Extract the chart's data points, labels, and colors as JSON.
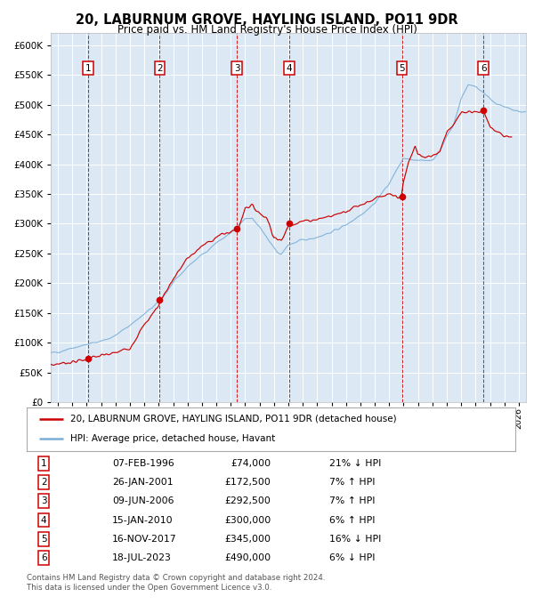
{
  "title": "20, LABURNUM GROVE, HAYLING ISLAND, PO11 9DR",
  "subtitle": "Price paid vs. HM Land Registry's House Price Index (HPI)",
  "ylim": [
    0,
    620000
  ],
  "yticks": [
    0,
    50000,
    100000,
    150000,
    200000,
    250000,
    300000,
    350000,
    400000,
    450000,
    500000,
    550000,
    600000
  ],
  "xlim_start": 1993.5,
  "xlim_end": 2026.5,
  "bg_color": "#dce9f5",
  "grid_color": "#ffffff",
  "hpi_color": "#7aaed6",
  "price_color": "#cc0000",
  "sales": [
    {
      "num": 1,
      "year": 1996.1,
      "price": 74000
    },
    {
      "num": 2,
      "year": 2001.07,
      "price": 172500
    },
    {
      "num": 3,
      "year": 2006.44,
      "price": 292500
    },
    {
      "num": 4,
      "year": 2010.04,
      "price": 300000
    },
    {
      "num": 5,
      "year": 2017.88,
      "price": 345000
    },
    {
      "num": 6,
      "year": 2023.54,
      "price": 490000
    }
  ],
  "footer1": "Contains HM Land Registry data © Crown copyright and database right 2024.",
  "footer2": "This data is licensed under the Open Government Licence v3.0.",
  "legend_line1": "20, LABURNUM GROVE, HAYLING ISLAND, PO11 9DR (detached house)",
  "legend_line2": "HPI: Average price, detached house, Havant",
  "table": [
    {
      "num": "1",
      "date": "07-FEB-1996",
      "price": "£74,000",
      "hpi": "21% ↓ HPI"
    },
    {
      "num": "2",
      "date": "26-JAN-2001",
      "price": "£172,500",
      "hpi": "7% ↑ HPI"
    },
    {
      "num": "3",
      "date": "09-JUN-2006",
      "price": "£292,500",
      "hpi": "7% ↑ HPI"
    },
    {
      "num": "4",
      "date": "15-JAN-2010",
      "price": "£300,000",
      "hpi": "6% ↑ HPI"
    },
    {
      "num": "5",
      "date": "16-NOV-2017",
      "price": "£345,000",
      "hpi": "16% ↓ HPI"
    },
    {
      "num": "6",
      "date": "18-JUL-2023",
      "price": "£490,000",
      "hpi": "6% ↓ HPI"
    }
  ],
  "hpi_ctrl_x": [
    1993.5,
    1994,
    1995,
    1996,
    1997,
    1998,
    1999,
    2000,
    2001,
    2002,
    2003,
    2004,
    2005,
    2006,
    2007,
    2007.5,
    2008,
    2009,
    2009.5,
    2010,
    2011,
    2012,
    2013,
    2014,
    2015,
    2016,
    2017,
    2018,
    2019,
    2020,
    2020.5,
    2021,
    2021.5,
    2022,
    2022.5,
    2023,
    2023.5,
    2024,
    2024.5,
    2025,
    2025.5,
    2026,
    2026.5
  ],
  "hpi_ctrl_y": [
    82000,
    85000,
    92000,
    97000,
    103000,
    112000,
    130000,
    148000,
    168000,
    200000,
    228000,
    248000,
    268000,
    284000,
    308000,
    310000,
    295000,
    258000,
    248000,
    265000,
    272000,
    278000,
    286000,
    298000,
    315000,
    335000,
    368000,
    410000,
    405000,
    408000,
    420000,
    448000,
    468000,
    510000,
    535000,
    530000,
    522000,
    510000,
    502000,
    495000,
    492000,
    488000,
    488000
  ],
  "price_ctrl_x": [
    1993.5,
    1994,
    1995,
    1996.05,
    1996.15,
    1997,
    1998,
    1999,
    2000,
    2001.0,
    2001.15,
    2002,
    2003,
    2004,
    2005,
    2006,
    2006.3,
    2006.55,
    2007,
    2007.5,
    2008,
    2008.5,
    2009,
    2009.5,
    2010.0,
    2010.15,
    2011,
    2012,
    2013,
    2014,
    2015,
    2016,
    2017,
    2017.85,
    2018.0,
    2018.3,
    2018.8,
    2019,
    2019.5,
    2020,
    2020.5,
    2021,
    2021.5,
    2022,
    2022.5,
    2023.0,
    2023.55,
    2023.8,
    2024,
    2024.5,
    2025,
    2025.5
  ],
  "price_ctrl_y": [
    62000,
    65000,
    68000,
    72000,
    74000,
    78000,
    83000,
    92000,
    130000,
    163000,
    172500,
    207000,
    242000,
    262000,
    278000,
    287000,
    289000,
    292500,
    328000,
    330000,
    318000,
    310000,
    278000,
    270000,
    296000,
    300000,
    304000,
    308000,
    313000,
    322000,
    332000,
    342000,
    348000,
    345000,
    370000,
    400000,
    430000,
    418000,
    410000,
    415000,
    422000,
    455000,
    468000,
    485000,
    490000,
    488000,
    490000,
    475000,
    462000,
    455000,
    448000,
    445000
  ]
}
